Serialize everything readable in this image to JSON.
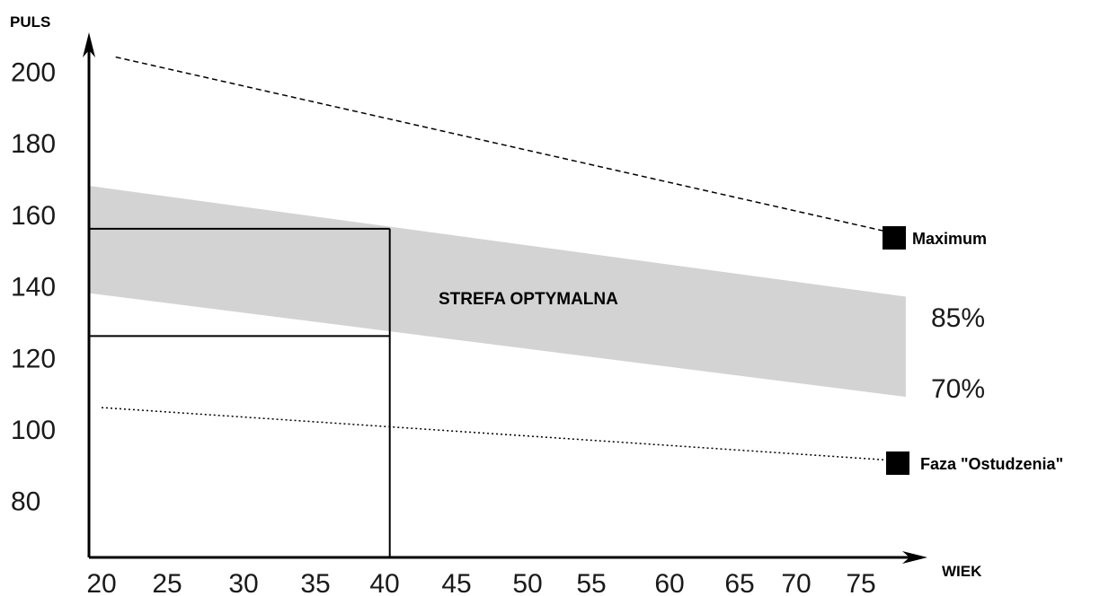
{
  "chart_data": {
    "type": "line",
    "xlabel": "WIEK",
    "ylabel": "PULS",
    "x_ticks": [
      20,
      25,
      30,
      35,
      40,
      45,
      50,
      55,
      60,
      65,
      70,
      75
    ],
    "y_ticks": [
      80,
      100,
      120,
      140,
      160,
      180,
      200
    ],
    "xlim": [
      20,
      77
    ],
    "ylim": [
      70,
      210
    ],
    "grid": false,
    "series": [
      {
        "name": "Maximum",
        "style": "dashed",
        "x": [
          21,
          77
        ],
        "y": [
          204,
          154
        ]
      },
      {
        "name": "Faza \"Ostudzenia\"",
        "style": "dotted",
        "x": [
          20,
          77
        ],
        "y": [
          106,
          91
        ]
      }
    ],
    "band": {
      "label": "STREFA OPTYMALNA",
      "color": "#d3d3d3",
      "x": [
        20,
        77
      ],
      "upper": [
        168,
        137
      ],
      "lower": [
        138,
        109
      ],
      "upper_label": "85%",
      "lower_label": "70%"
    },
    "reference": {
      "x": 41,
      "y_upper": 156,
      "y_lower": 126
    }
  }
}
